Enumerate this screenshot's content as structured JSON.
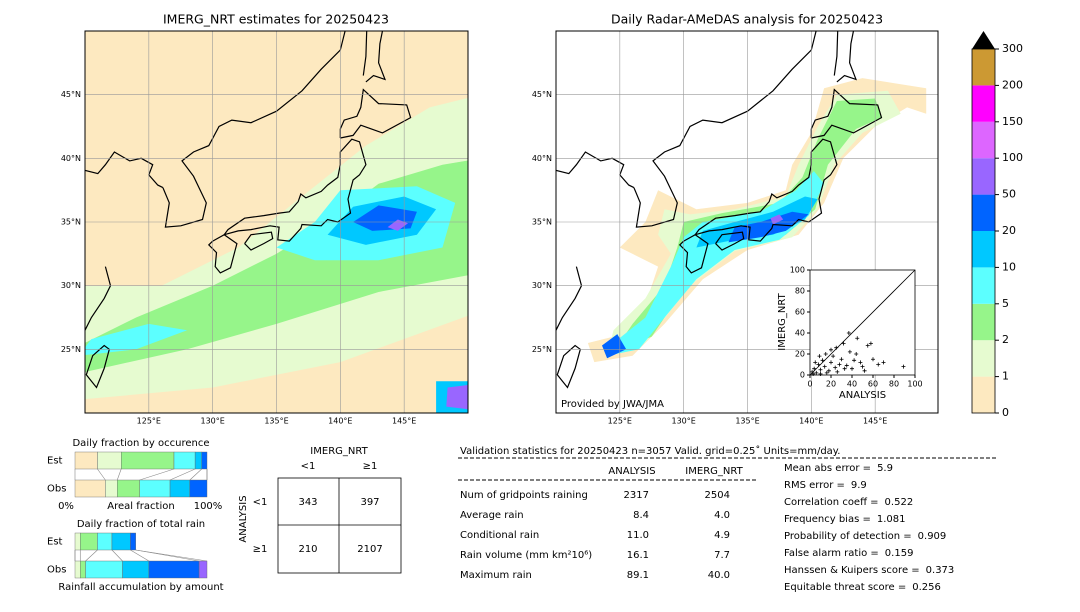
{
  "left_map": {
    "title": "IMERG_NRT estimates for 20250423",
    "xlim": [
      120,
      150
    ],
    "ylim": [
      20,
      50
    ],
    "lon_ticks": [
      {
        "value": 125,
        "label": "125°E"
      },
      {
        "value": 130,
        "label": "130°E"
      },
      {
        "value": 135,
        "label": "135°E"
      },
      {
        "value": 140,
        "label": "140°E"
      },
      {
        "value": 145,
        "label": "145°E"
      }
    ],
    "lat_ticks": [
      {
        "value": 45,
        "label": "45°N"
      },
      {
        "value": 40,
        "label": "40°N"
      },
      {
        "value": 35,
        "label": "35°N"
      },
      {
        "value": 30,
        "label": "30°N"
      },
      {
        "value": 25,
        "label": "25°N"
      }
    ]
  },
  "right_map": {
    "title": "Daily Radar-AMeDAS analysis for 20250423",
    "credit": "Provided by JWA/JMA",
    "xlim": [
      120,
      150
    ],
    "ylim": [
      20,
      50
    ],
    "lon_ticks": [
      {
        "value": 125,
        "label": "125°E"
      },
      {
        "value": 130,
        "label": "130°E"
      },
      {
        "value": 135,
        "label": "135°E"
      },
      {
        "value": 140,
        "label": "140°E"
      },
      {
        "value": 145,
        "label": "145°E"
      }
    ],
    "lat_ticks": [
      {
        "value": 45,
        "label": "45°N"
      },
      {
        "value": 40,
        "label": "40°N"
      },
      {
        "value": 35,
        "label": "35°N"
      },
      {
        "value": 30,
        "label": "30°N"
      },
      {
        "value": 25,
        "label": "25°N"
      }
    ]
  },
  "colorbar": {
    "ticks": [
      0,
      1,
      2,
      5,
      10,
      20,
      50,
      100,
      150,
      200,
      300
    ],
    "colors": [
      "#fde9c0",
      "#e6fbd0",
      "#96f58a",
      "#5cffff",
      "#00c8ff",
      "#0064ff",
      "#9966ff",
      "#dd66ff",
      "#ff00ff",
      "#cc9933"
    ]
  },
  "scatter": {
    "type": "scatter",
    "xlabel": "ANALYSIS",
    "ylabel": "IMERG_NRT",
    "xlim": [
      0,
      100
    ],
    "ylim": [
      0,
      100
    ],
    "xticks": [
      0,
      20,
      40,
      60,
      80,
      100
    ],
    "yticks": [
      0,
      20,
      40,
      60,
      80,
      100
    ],
    "x": [
      2,
      4,
      6,
      8,
      10,
      12,
      14,
      15,
      18,
      20,
      22,
      24,
      25,
      28,
      30,
      32,
      35,
      38,
      40,
      42,
      45,
      48,
      50,
      55,
      60,
      65,
      70,
      89,
      5,
      10,
      16,
      20,
      26,
      33,
      37,
      44,
      52,
      58,
      3,
      9
    ],
    "y": [
      3,
      6,
      2,
      10,
      5,
      14,
      8,
      20,
      4,
      12,
      18,
      7,
      26,
      10,
      15,
      30,
      9,
      22,
      6,
      14,
      35,
      12,
      8,
      28,
      15,
      10,
      12,
      8,
      12,
      1,
      2,
      24,
      3,
      6,
      40,
      20,
      4,
      30,
      1,
      18
    ]
  },
  "occurrence": {
    "title": "Daily fraction by occurence",
    "xlabel": "Areal fraction",
    "left": "0%",
    "right": "100%",
    "rows": [
      {
        "label": "Est",
        "values": [
          17,
          18,
          40,
          16,
          5,
          4,
          0
        ]
      },
      {
        "label": "Obs",
        "values": [
          23,
          9,
          17,
          23,
          15,
          13,
          0
        ]
      }
    ],
    "colors": [
      "#fde9c0",
      "#e6fbd0",
      "#96f58a",
      "#5cffff",
      "#00c8ff",
      "#0064ff",
      "#9966ff"
    ]
  },
  "total_rain": {
    "title": "Daily fraction of total rain",
    "xlabel": "Rainfall accumulation by amount",
    "rows": [
      {
        "label": "Est",
        "values": [
          0,
          4,
          13,
          11,
          14,
          4,
          0
        ]
      },
      {
        "label": "Obs",
        "values": [
          0,
          4,
          4,
          28,
          20,
          38,
          6
        ]
      }
    ],
    "colors": [
      "#fde9c0",
      "#e6fbd0",
      "#96f58a",
      "#5cffff",
      "#00c8ff",
      "#0064ff",
      "#9966ff"
    ]
  },
  "contingency": {
    "title": "IMERG_NRT",
    "columns": [
      "<1",
      "≥1"
    ],
    "row_title": "ANALYSIS",
    "rows": [
      "<1",
      "≥1"
    ],
    "cells": [
      [
        "343",
        "397"
      ],
      [
        "210",
        "2107"
      ]
    ]
  },
  "stats": {
    "header": "Validation statistics for 20250423  n=3057 Valid. grid=0.25˚ Units=mm/day.",
    "columns": [
      "ANALYSIS",
      "IMERG_NRT"
    ],
    "rows": [
      [
        "Num of gridpoints raining",
        "2317",
        "2504"
      ],
      [
        "Average rain",
        "8.4",
        "4.0"
      ],
      [
        "Conditional rain",
        "11.0",
        "4.9"
      ],
      [
        "Rain volume (mm km²10⁶)",
        "16.1",
        "7.7"
      ],
      [
        "Maximum rain",
        "89.1",
        "40.0"
      ]
    ],
    "scores": [
      [
        "Mean abs error =",
        "5.9"
      ],
      [
        "RMS error =",
        "9.9"
      ],
      [
        "Correlation coeff =",
        "0.522"
      ],
      [
        "Frequency bias =",
        "1.081"
      ],
      [
        "Probability of detection =",
        "0.909"
      ],
      [
        "False alarm ratio =",
        "0.159"
      ],
      [
        "Hanssen & Kuipers score =",
        "0.373"
      ],
      [
        "Equitable threat score =",
        "0.256"
      ]
    ]
  }
}
